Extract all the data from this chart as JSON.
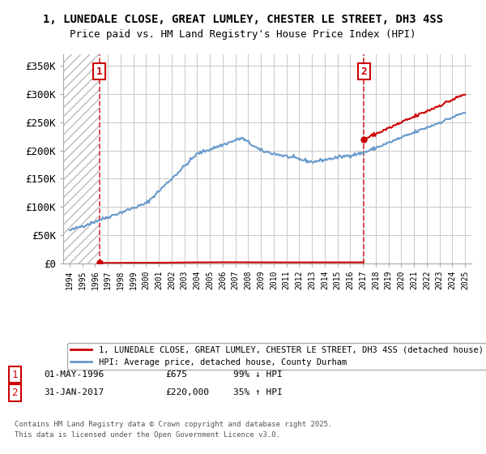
{
  "title_line1": "1, LUNEDALE CLOSE, GREAT LUMLEY, CHESTER LE STREET, DH3 4SS",
  "title_line2": "Price paid vs. HM Land Registry's House Price Index (HPI)",
  "xlim_start": 1993.5,
  "xlim_end": 2025.5,
  "ylim_min": 0,
  "ylim_max": 370000,
  "yticks": [
    0,
    50000,
    100000,
    150000,
    200000,
    250000,
    300000,
    350000
  ],
  "ytick_labels": [
    "£0",
    "£50K",
    "£100K",
    "£150K",
    "£200K",
    "£250K",
    "£300K",
    "£350K"
  ],
  "sale1_date": 1996.33,
  "sale1_price": 675,
  "sale2_date": 2017.08,
  "sale2_price": 220000,
  "hpi_color": "#6699cc",
  "sale_color": "#cc0000",
  "legend_entry1": "1, LUNEDALE CLOSE, GREAT LUMLEY, CHESTER LE STREET, DH3 4SS (detached house)",
  "legend_entry2": "HPI: Average price, detached house, County Durham",
  "footnote3": "Contains HM Land Registry data © Crown copyright and database right 2025.",
  "footnote4": "This data is licensed under the Open Government Licence v3.0.",
  "background_color": "#ffffff",
  "grid_color": "#cccccc"
}
